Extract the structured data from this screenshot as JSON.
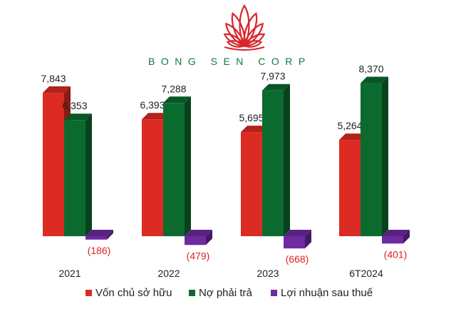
{
  "logo": {
    "text": "BONG SEN CORP",
    "icon": "lotus-icon",
    "colors": {
      "flower": "#d9262b",
      "text": "#0f7a3e"
    }
  },
  "colors": {
    "series": [
      "#dc2b22",
      "#0b6b2f",
      "#6f2aa1"
    ],
    "negative_label": "#e02020"
  },
  "chart_data": {
    "type": "bar",
    "title": "",
    "xlabel": "",
    "ylabel": "",
    "categories": [
      "2021",
      "2022",
      "2023",
      "6T2024"
    ],
    "series": [
      {
        "name": "Vốn chủ sở hữu",
        "values": [
          7843,
          6393,
          5695,
          5264
        ],
        "labels": [
          "7,843",
          "6,393",
          "5,695",
          "5,264"
        ]
      },
      {
        "name": "Nợ phải trả",
        "values": [
          6353,
          7288,
          7973,
          8370
        ],
        "labels": [
          "6,353",
          "7,288",
          "7,973",
          "8,370"
        ]
      },
      {
        "name": "Lợi nhuận sau thuế",
        "values": [
          -186,
          -479,
          -668,
          -401
        ],
        "labels": [
          "(186)",
          "(479)",
          "(668)",
          "(401)"
        ]
      }
    ],
    "ylim": [
      -700,
      8500
    ],
    "grid": false,
    "legend": "bottom"
  }
}
